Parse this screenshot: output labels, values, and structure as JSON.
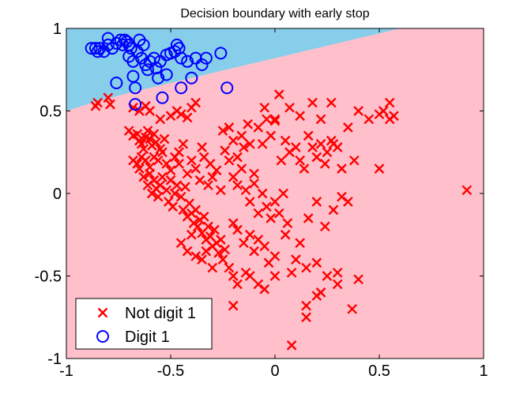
{
  "chart_data": {
    "type": "scatter",
    "title": "Decision boundary with early stop",
    "xlabel": "",
    "ylabel": "",
    "xlim": [
      -1,
      1
    ],
    "ylim": [
      -1,
      1
    ],
    "xticks": [
      "-1",
      "-0.5",
      "0",
      "0.5",
      "1"
    ],
    "yticks": [
      "-1",
      "-0.5",
      "0",
      "0.5",
      "1"
    ],
    "grid": false,
    "legend_position": "bottom-left",
    "boundary": {
      "points": [
        [
          -1,
          0.5
        ],
        [
          -0.9,
          0.54
        ],
        [
          -0.7,
          0.61
        ],
        [
          -0.5,
          0.67
        ],
        [
          -0.3,
          0.73
        ],
        [
          -0.1,
          0.79
        ],
        [
          0.1,
          0.85
        ],
        [
          0.3,
          0.91
        ],
        [
          0.5,
          0.97
        ],
        [
          0.6,
          1.0
        ]
      ],
      "above_color": "#87ceeb",
      "below_color": "#ffc0cb"
    },
    "series": [
      {
        "name": "Not digit 1",
        "marker": "x",
        "color": "#ff0000",
        "points": [
          [
            -0.86,
            0.53
          ],
          [
            -0.85,
            0.55
          ],
          [
            -0.8,
            0.58
          ],
          [
            -0.79,
            0.54
          ],
          [
            -0.68,
            0.52
          ],
          [
            -0.65,
            0.5
          ],
          [
            -0.62,
            0.53
          ],
          [
            -0.6,
            0.5
          ],
          [
            -0.55,
            0.45
          ],
          [
            -0.5,
            0.47
          ],
          [
            -0.47,
            0.5
          ],
          [
            -0.45,
            0.48
          ],
          [
            -0.42,
            0.46
          ],
          [
            -0.4,
            0.52
          ],
          [
            -0.38,
            0.55
          ],
          [
            -0.7,
            0.38
          ],
          [
            -0.68,
            0.35
          ],
          [
            -0.66,
            0.36
          ],
          [
            -0.65,
            0.32
          ],
          [
            -0.64,
            0.3
          ],
          [
            -0.63,
            0.27
          ],
          [
            -0.62,
            0.34
          ],
          [
            -0.61,
            0.38
          ],
          [
            -0.6,
            0.33
          ],
          [
            -0.59,
            0.29
          ],
          [
            -0.58,
            0.36
          ],
          [
            -0.57,
            0.31
          ],
          [
            -0.55,
            0.27
          ],
          [
            -0.53,
            0.33
          ],
          [
            -0.68,
            0.2
          ],
          [
            -0.66,
            0.18
          ],
          [
            -0.65,
            0.15
          ],
          [
            -0.64,
            0.22
          ],
          [
            -0.62,
            0.2
          ],
          [
            -0.6,
            0.16
          ],
          [
            -0.58,
            0.22
          ],
          [
            -0.56,
            0.2
          ],
          [
            -0.54,
            0.25
          ],
          [
            -0.52,
            0.18
          ],
          [
            -0.5,
            0.14
          ],
          [
            -0.48,
            0.22
          ],
          [
            -0.46,
            0.18
          ],
          [
            -0.63,
            0.1
          ],
          [
            -0.61,
            0.05
          ],
          [
            -0.6,
            0.12
          ],
          [
            -0.59,
            0.0
          ],
          [
            -0.58,
            0.08
          ],
          [
            -0.57,
            0.03
          ],
          [
            -0.56,
            -0.02
          ],
          [
            -0.55,
            0.05
          ],
          [
            -0.54,
            0.1
          ],
          [
            -0.52,
            0.02
          ],
          [
            -0.51,
            -0.05
          ],
          [
            -0.5,
            0.08
          ],
          [
            -0.49,
            -0.08
          ],
          [
            -0.48,
            0.0
          ],
          [
            -0.47,
            0.05
          ],
          [
            -0.45,
            -0.02
          ],
          [
            -0.44,
            -0.1
          ],
          [
            -0.43,
            0.04
          ],
          [
            -0.42,
            -0.14
          ],
          [
            -0.41,
            -0.06
          ],
          [
            -0.4,
            -0.12
          ],
          [
            -0.39,
            -0.18
          ],
          [
            -0.38,
            -0.1
          ],
          [
            -0.37,
            -0.2
          ],
          [
            -0.36,
            -0.16
          ],
          [
            -0.35,
            -0.24
          ],
          [
            -0.34,
            -0.14
          ],
          [
            -0.33,
            -0.28
          ],
          [
            -0.32,
            -0.2
          ],
          [
            -0.31,
            -0.26
          ],
          [
            -0.3,
            -0.32
          ],
          [
            -0.29,
            -0.22
          ],
          [
            -0.28,
            -0.3
          ],
          [
            -0.27,
            -0.36
          ],
          [
            -0.26,
            -0.28
          ],
          [
            -0.25,
            -0.4
          ],
          [
            -0.24,
            -0.34
          ],
          [
            -0.45,
            -0.3
          ],
          [
            -0.42,
            -0.35
          ],
          [
            -0.4,
            -0.25
          ],
          [
            -0.38,
            -0.38
          ],
          [
            -0.35,
            -0.4
          ],
          [
            -0.33,
            -0.35
          ],
          [
            -0.3,
            -0.45
          ],
          [
            -0.46,
            0.25
          ],
          [
            -0.44,
            0.3
          ],
          [
            -0.42,
            0.12
          ],
          [
            -0.4,
            0.2
          ],
          [
            -0.38,
            0.15
          ],
          [
            -0.36,
            0.08
          ],
          [
            -0.35,
            0.28
          ],
          [
            -0.34,
            0.22
          ],
          [
            -0.32,
            0.05
          ],
          [
            -0.31,
            0.18
          ],
          [
            -0.3,
            0.1
          ],
          [
            -0.28,
            0.14
          ],
          [
            -0.26,
            0.02
          ],
          [
            -0.25,
            0.38
          ],
          [
            -0.24,
            0.26
          ],
          [
            -0.22,
            0.4
          ],
          [
            -0.2,
            0.32
          ],
          [
            -0.18,
            0.22
          ],
          [
            -0.16,
            0.35
          ],
          [
            -0.15,
            0.28
          ],
          [
            -0.13,
            0.42
          ],
          [
            -0.12,
            0.3
          ],
          [
            -0.1,
            0.12
          ],
          [
            -0.08,
            0.4
          ],
          [
            -0.06,
            0.3
          ],
          [
            -0.05,
            0.52
          ],
          [
            -0.04,
            0.45
          ],
          [
            0.0,
            0.45
          ],
          [
            -0.02,
            0.35
          ],
          [
            0.0,
            0.44
          ],
          [
            0.02,
            0.6
          ],
          [
            0.03,
            0.2
          ],
          [
            0.05,
            0.32
          ],
          [
            0.07,
            0.25
          ],
          [
            0.1,
            0.28
          ],
          [
            0.12,
            0.2
          ],
          [
            0.14,
            0.15
          ],
          [
            0.16,
            0.35
          ],
          [
            0.18,
            0.28
          ],
          [
            0.2,
            0.22
          ],
          [
            0.22,
            0.3
          ],
          [
            0.24,
            0.18
          ],
          [
            0.25,
            0.25
          ],
          [
            0.27,
            0.32
          ],
          [
            0.3,
            0.28
          ],
          [
            0.32,
            0.15
          ],
          [
            0.35,
            0.4
          ],
          [
            0.07,
            0.52
          ],
          [
            0.12,
            0.47
          ],
          [
            0.18,
            0.55
          ],
          [
            0.22,
            0.45
          ],
          [
            0.27,
            0.55
          ],
          [
            0.28,
            0.3
          ],
          [
            0.4,
            0.5
          ],
          [
            0.45,
            0.45
          ],
          [
            0.5,
            0.48
          ],
          [
            0.55,
            0.45
          ],
          [
            0.52,
            0.5
          ],
          [
            0.55,
            0.55
          ],
          [
            0.57,
            0.47
          ],
          [
            0.38,
            0.2
          ],
          [
            0.5,
            0.15
          ],
          [
            -0.22,
            0.2
          ],
          [
            -0.2,
            0.1
          ],
          [
            -0.18,
            0.05
          ],
          [
            -0.16,
            0.15
          ],
          [
            -0.14,
            0.02
          ],
          [
            -0.12,
            -0.05
          ],
          [
            -0.1,
            0.06
          ],
          [
            -0.08,
            -0.12
          ],
          [
            -0.06,
            0.0
          ],
          [
            -0.04,
            -0.08
          ],
          [
            -0.02,
            -0.15
          ],
          [
            0.0,
            -0.05
          ],
          [
            0.02,
            -0.12
          ],
          [
            0.04,
            0.0
          ],
          [
            0.06,
            -0.18
          ],
          [
            -0.2,
            -0.18
          ],
          [
            -0.18,
            -0.22
          ],
          [
            -0.15,
            -0.3
          ],
          [
            -0.12,
            -0.25
          ],
          [
            -0.1,
            -0.35
          ],
          [
            -0.08,
            -0.28
          ],
          [
            -0.05,
            -0.32
          ],
          [
            -0.03,
            -0.42
          ],
          [
            0.0,
            -0.38
          ],
          [
            0.05,
            -0.25
          ],
          [
            0.1,
            -0.4
          ],
          [
            0.15,
            -0.45
          ],
          [
            0.2,
            -0.42
          ],
          [
            0.25,
            -0.5
          ],
          [
            0.3,
            -0.48
          ],
          [
            -0.22,
            -0.45
          ],
          [
            -0.2,
            -0.5
          ],
          [
            -0.18,
            -0.55
          ],
          [
            -0.14,
            -0.48
          ],
          [
            -0.12,
            -0.5
          ],
          [
            -0.08,
            -0.55
          ],
          [
            -0.05,
            -0.58
          ],
          [
            0.0,
            -0.5
          ],
          [
            0.08,
            -0.48
          ],
          [
            0.12,
            -0.3
          ],
          [
            0.16,
            -0.15
          ],
          [
            0.2,
            -0.05
          ],
          [
            0.24,
            -0.2
          ],
          [
            0.28,
            -0.1
          ],
          [
            0.32,
            -0.02
          ],
          [
            0.35,
            -0.05
          ],
          [
            0.3,
            -0.55
          ],
          [
            0.4,
            -0.52
          ],
          [
            0.2,
            -0.62
          ],
          [
            0.15,
            -0.68
          ],
          [
            0.22,
            -0.6
          ],
          [
            0.08,
            -0.92
          ],
          [
            0.15,
            -0.75
          ],
          [
            0.37,
            -0.7
          ],
          [
            -0.2,
            -0.68
          ],
          [
            0.92,
            0.02
          ]
        ]
      },
      {
        "name": "Digit 1",
        "marker": "o",
        "color": "#0000ff",
        "points": [
          [
            -0.88,
            0.88
          ],
          [
            -0.86,
            0.88
          ],
          [
            -0.85,
            0.86
          ],
          [
            -0.84,
            0.88
          ],
          [
            -0.82,
            0.86
          ],
          [
            -0.8,
            0.9
          ],
          [
            -0.8,
            0.94
          ],
          [
            -0.78,
            0.88
          ],
          [
            -0.76,
            0.91
          ],
          [
            -0.74,
            0.93
          ],
          [
            -0.73,
            0.9
          ],
          [
            -0.72,
            0.93
          ],
          [
            -0.71,
            0.92
          ],
          [
            -0.7,
            0.9
          ],
          [
            -0.69,
            0.88
          ],
          [
            -0.7,
            0.83
          ],
          [
            -0.68,
            0.8
          ],
          [
            -0.66,
            0.86
          ],
          [
            -0.65,
            0.93
          ],
          [
            -0.64,
            0.82
          ],
          [
            -0.63,
            0.9
          ],
          [
            -0.62,
            0.78
          ],
          [
            -0.61,
            0.75
          ],
          [
            -0.6,
            0.8
          ],
          [
            -0.58,
            0.82
          ],
          [
            -0.57,
            0.76
          ],
          [
            -0.55,
            0.8
          ],
          [
            -0.52,
            0.84
          ],
          [
            -0.5,
            0.85
          ],
          [
            -0.48,
            0.86
          ],
          [
            -0.47,
            0.9
          ],
          [
            -0.46,
            0.88
          ],
          [
            -0.45,
            0.82
          ],
          [
            -0.42,
            0.8
          ],
          [
            -0.38,
            0.82
          ],
          [
            -0.35,
            0.78
          ],
          [
            -0.33,
            0.82
          ],
          [
            -0.26,
            0.85
          ],
          [
            -0.23,
            0.64
          ],
          [
            -0.45,
            0.64
          ],
          [
            -0.54,
            0.58
          ],
          [
            -0.67,
            0.54
          ],
          [
            -0.56,
            0.7
          ],
          [
            -0.68,
            0.71
          ],
          [
            -0.52,
            0.72
          ],
          [
            -0.4,
            0.7
          ],
          [
            -0.76,
            0.67
          ],
          [
            -0.67,
            0.64
          ]
        ]
      }
    ]
  }
}
